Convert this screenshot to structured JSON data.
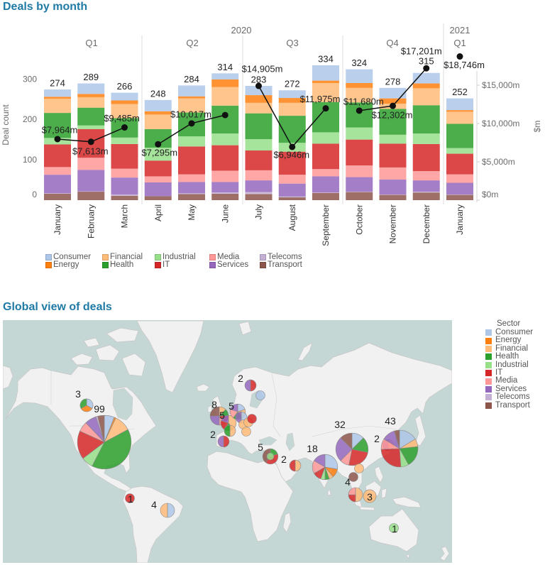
{
  "colors": {
    "Consumer": "#aec7e8",
    "Energy": "#ff7f0e",
    "Financial": "#ffbb78",
    "Health": "#2ca02c",
    "Industrial": "#98df8a",
    "IT": "#d62728",
    "Media": "#ff9896",
    "Services": "#9467bd",
    "Telecoms": "#c5b0d5",
    "Transport": "#8c564b"
  },
  "theme": {
    "title_color": "#1f7aa6",
    "sea": "#c5d7d5",
    "land": "#f1f1f1"
  },
  "chart_data": [
    {
      "type": "bar",
      "stacked": true,
      "title": "Deals by month",
      "categories": [
        "January",
        "February",
        "March",
        "April",
        "May",
        "June",
        "July",
        "August",
        "September",
        "October",
        "November",
        "December",
        "January"
      ],
      "quarter_of_month": [
        0,
        0,
        0,
        1,
        1,
        1,
        2,
        2,
        2,
        3,
        3,
        3,
        4
      ],
      "years": [
        "2020",
        "2021"
      ],
      "quarters": [
        "Q1",
        "Q2",
        "Q3",
        "Q4",
        "Q1"
      ],
      "sectors": [
        "Consumer",
        "Energy",
        "Financial",
        "Health",
        "Industrial",
        "IT",
        "Media",
        "Services",
        "Telecoms",
        "Transport"
      ],
      "series": [
        {
          "name": "Consumer",
          "values": [
            18,
            26,
            19,
            28,
            27,
            15,
            23,
            19,
            38,
            34,
            26,
            26,
            29
          ]
        },
        {
          "name": "Energy",
          "values": [
            5,
            8,
            9,
            8,
            5,
            19,
            19,
            12,
            6,
            12,
            13,
            12,
            4
          ]
        },
        {
          "name": "Financial",
          "values": [
            35,
            26,
            35,
            36,
            35,
            46,
            26,
            32,
            47,
            36,
            13,
            42,
            30
          ]
        },
        {
          "name": "Health",
          "values": [
            62,
            44,
            48,
            46,
            59,
            69,
            64,
            67,
            75,
            62,
            64,
            70,
            60
          ]
        },
        {
          "name": "Industrial",
          "values": [
            16,
            9,
            16,
            32,
            25,
            29,
            28,
            22,
            28,
            30,
            22,
            26,
            14
          ]
        },
        {
          "name": "IT",
          "values": [
            56,
            71,
            61,
            39,
            69,
            63,
            49,
            57,
            63,
            64,
            59,
            67,
            51
          ]
        },
        {
          "name": "Media",
          "values": [
            19,
            30,
            22,
            15,
            19,
            28,
            25,
            22,
            18,
            29,
            30,
            23,
            21
          ]
        },
        {
          "name": "Services",
          "values": [
            46,
            53,
            42,
            34,
            28,
            26,
            29,
            32,
            40,
            36,
            37,
            28,
            29
          ]
        },
        {
          "name": "Telecoms",
          "values": [
            1,
            1,
            3,
            0,
            2,
            3,
            5,
            2,
            1,
            1,
            1,
            2,
            1
          ]
        },
        {
          "name": "Transport",
          "values": [
            16,
            21,
            11,
            10,
            15,
            16,
            15,
            7,
            18,
            20,
            13,
            19,
            13
          ]
        }
      ],
      "totals": [
        "274",
        "289",
        "266",
        "248",
        "284",
        "314",
        "283",
        "272",
        "334",
        "324",
        "278",
        "315",
        "252"
      ],
      "ylabel": "Deal count",
      "ylim": [
        0,
        320
      ],
      "yticks": [
        0,
        100,
        200,
        300
      ],
      "ytick_labels": [
        "0",
        "100",
        "200",
        "300"
      ],
      "line": {
        "axis": "right",
        "values": [
          7964,
          7613,
          9485,
          7295,
          10017,
          11100,
          14905,
          6946,
          11975,
          11680,
          12302,
          17201,
          18746
        ],
        "labels": [
          "$7,964m",
          "$7,613m",
          "$9,485m",
          "$7,295m",
          "$10,017m",
          "",
          "$14,905m",
          "$6,946m",
          "$11,975m",
          "$11,680m",
          "$12,302m",
          "$17,201m",
          "$18,746m"
        ]
      },
      "y2label": "$m",
      "y2lim": [
        0,
        20000
      ],
      "y2ticks": [
        0,
        5000,
        10000,
        15000
      ],
      "y2tick_labels": [
        "$0m",
        "$5,000m",
        "$10,000m",
        "$15,000m"
      ],
      "grid": false,
      "legend": "bottom"
    },
    {
      "type": "pie",
      "title": "Global view of deals",
      "legend_title": "Sector",
      "legend": "right",
      "markers": [
        {
          "label": "99",
          "slices": {
            "Consumer": 6,
            "Energy": 1,
            "Financial": 10,
            "Health": 40,
            "Industrial": 7,
            "IT": 17,
            "Media": 6,
            "Services": 7,
            "Telecoms": 1,
            "Transport": 4
          }
        },
        {
          "label": "3",
          "slices": {
            "Consumer": 1,
            "Energy": 1,
            "Health": 1
          }
        },
        {
          "label": "1",
          "slices": {
            "IT": 1
          }
        },
        {
          "label": "4",
          "slices": {
            "Consumer": 2,
            "Financial": 2
          }
        },
        {
          "label": "2",
          "slices": {
            "IT": 1,
            "Services": 1
          }
        },
        {
          "label": "",
          "slices": {
            "Consumer": 1
          }
        },
        {
          "label": "8",
          "slices": {
            "Financial": 1,
            "Health": 1,
            "IT": 1,
            "Media": 1,
            "Services": 2,
            "Transport": 2
          }
        },
        {
          "label": "5",
          "slices": {
            "Financial": 2,
            "Health": 1,
            "IT": 1,
            "Services": 1
          }
        },
        {
          "label": "",
          "slices": {
            "Financial": 1,
            "Health": 1
          }
        },
        {
          "label": "5",
          "slices": {
            "Consumer": 1,
            "Financial": 1,
            "Health": 1,
            "Media": 1,
            "Services": 1
          }
        },
        {
          "label": "",
          "slices": {
            "Consumer": 1,
            "Services": 1
          }
        },
        {
          "label": "",
          "slices": {
            "Financial": 1
          }
        },
        {
          "label": "",
          "slices": {
            "Financial": 1
          }
        },
        {
          "label": "",
          "slices": {
            "Financial": 1
          }
        },
        {
          "label": "",
          "slices": {
            "IT": 1
          }
        },
        {
          "label": "2",
          "slices": {
            "IT": 1,
            "Services": 1
          }
        },
        {
          "label": "5",
          "slices": {
            "Health": 1,
            "IT": 2,
            "Transport": 2
          }
        },
        {
          "label": "",
          "slices": {
            "Industrial": 1
          }
        },
        {
          "label": "2",
          "slices": {
            "Financial": 1,
            "IT": 1
          }
        },
        {
          "label": "18",
          "slices": {
            "Consumer": 5,
            "Energy": 2,
            "Financial": 1,
            "Health": 1,
            "Industrial": 1,
            "IT": 2,
            "Media": 3,
            "Services": 3
          }
        },
        {
          "label": "32",
          "slices": {
            "Consumer": 4,
            "Health": 5,
            "IT": 8,
            "Media": 3,
            "Services": 8,
            "Transport": 4
          }
        },
        {
          "label": "2",
          "slices": {
            "Media": 1,
            "Services": 1
          }
        },
        {
          "label": "43",
          "slices": {
            "Consumer": 7,
            "Financial": 3,
            "Health": 8,
            "Industrial": 3,
            "IT": 11,
            "Media": 4,
            "Services": 5,
            "Transport": 2
          }
        },
        {
          "label": "",
          "slices": {
            "Financial": 1
          }
        },
        {
          "label": "",
          "slices": {
            "Transport": 1
          }
        },
        {
          "label": "4",
          "slices": {
            "Financial": 2,
            "IT": 1,
            "Media": 1
          }
        },
        {
          "label": "3",
          "slices": {
            "Financial": 3
          }
        },
        {
          "label": "1",
          "slices": {
            "Industrial": 1
          }
        }
      ]
    }
  ]
}
